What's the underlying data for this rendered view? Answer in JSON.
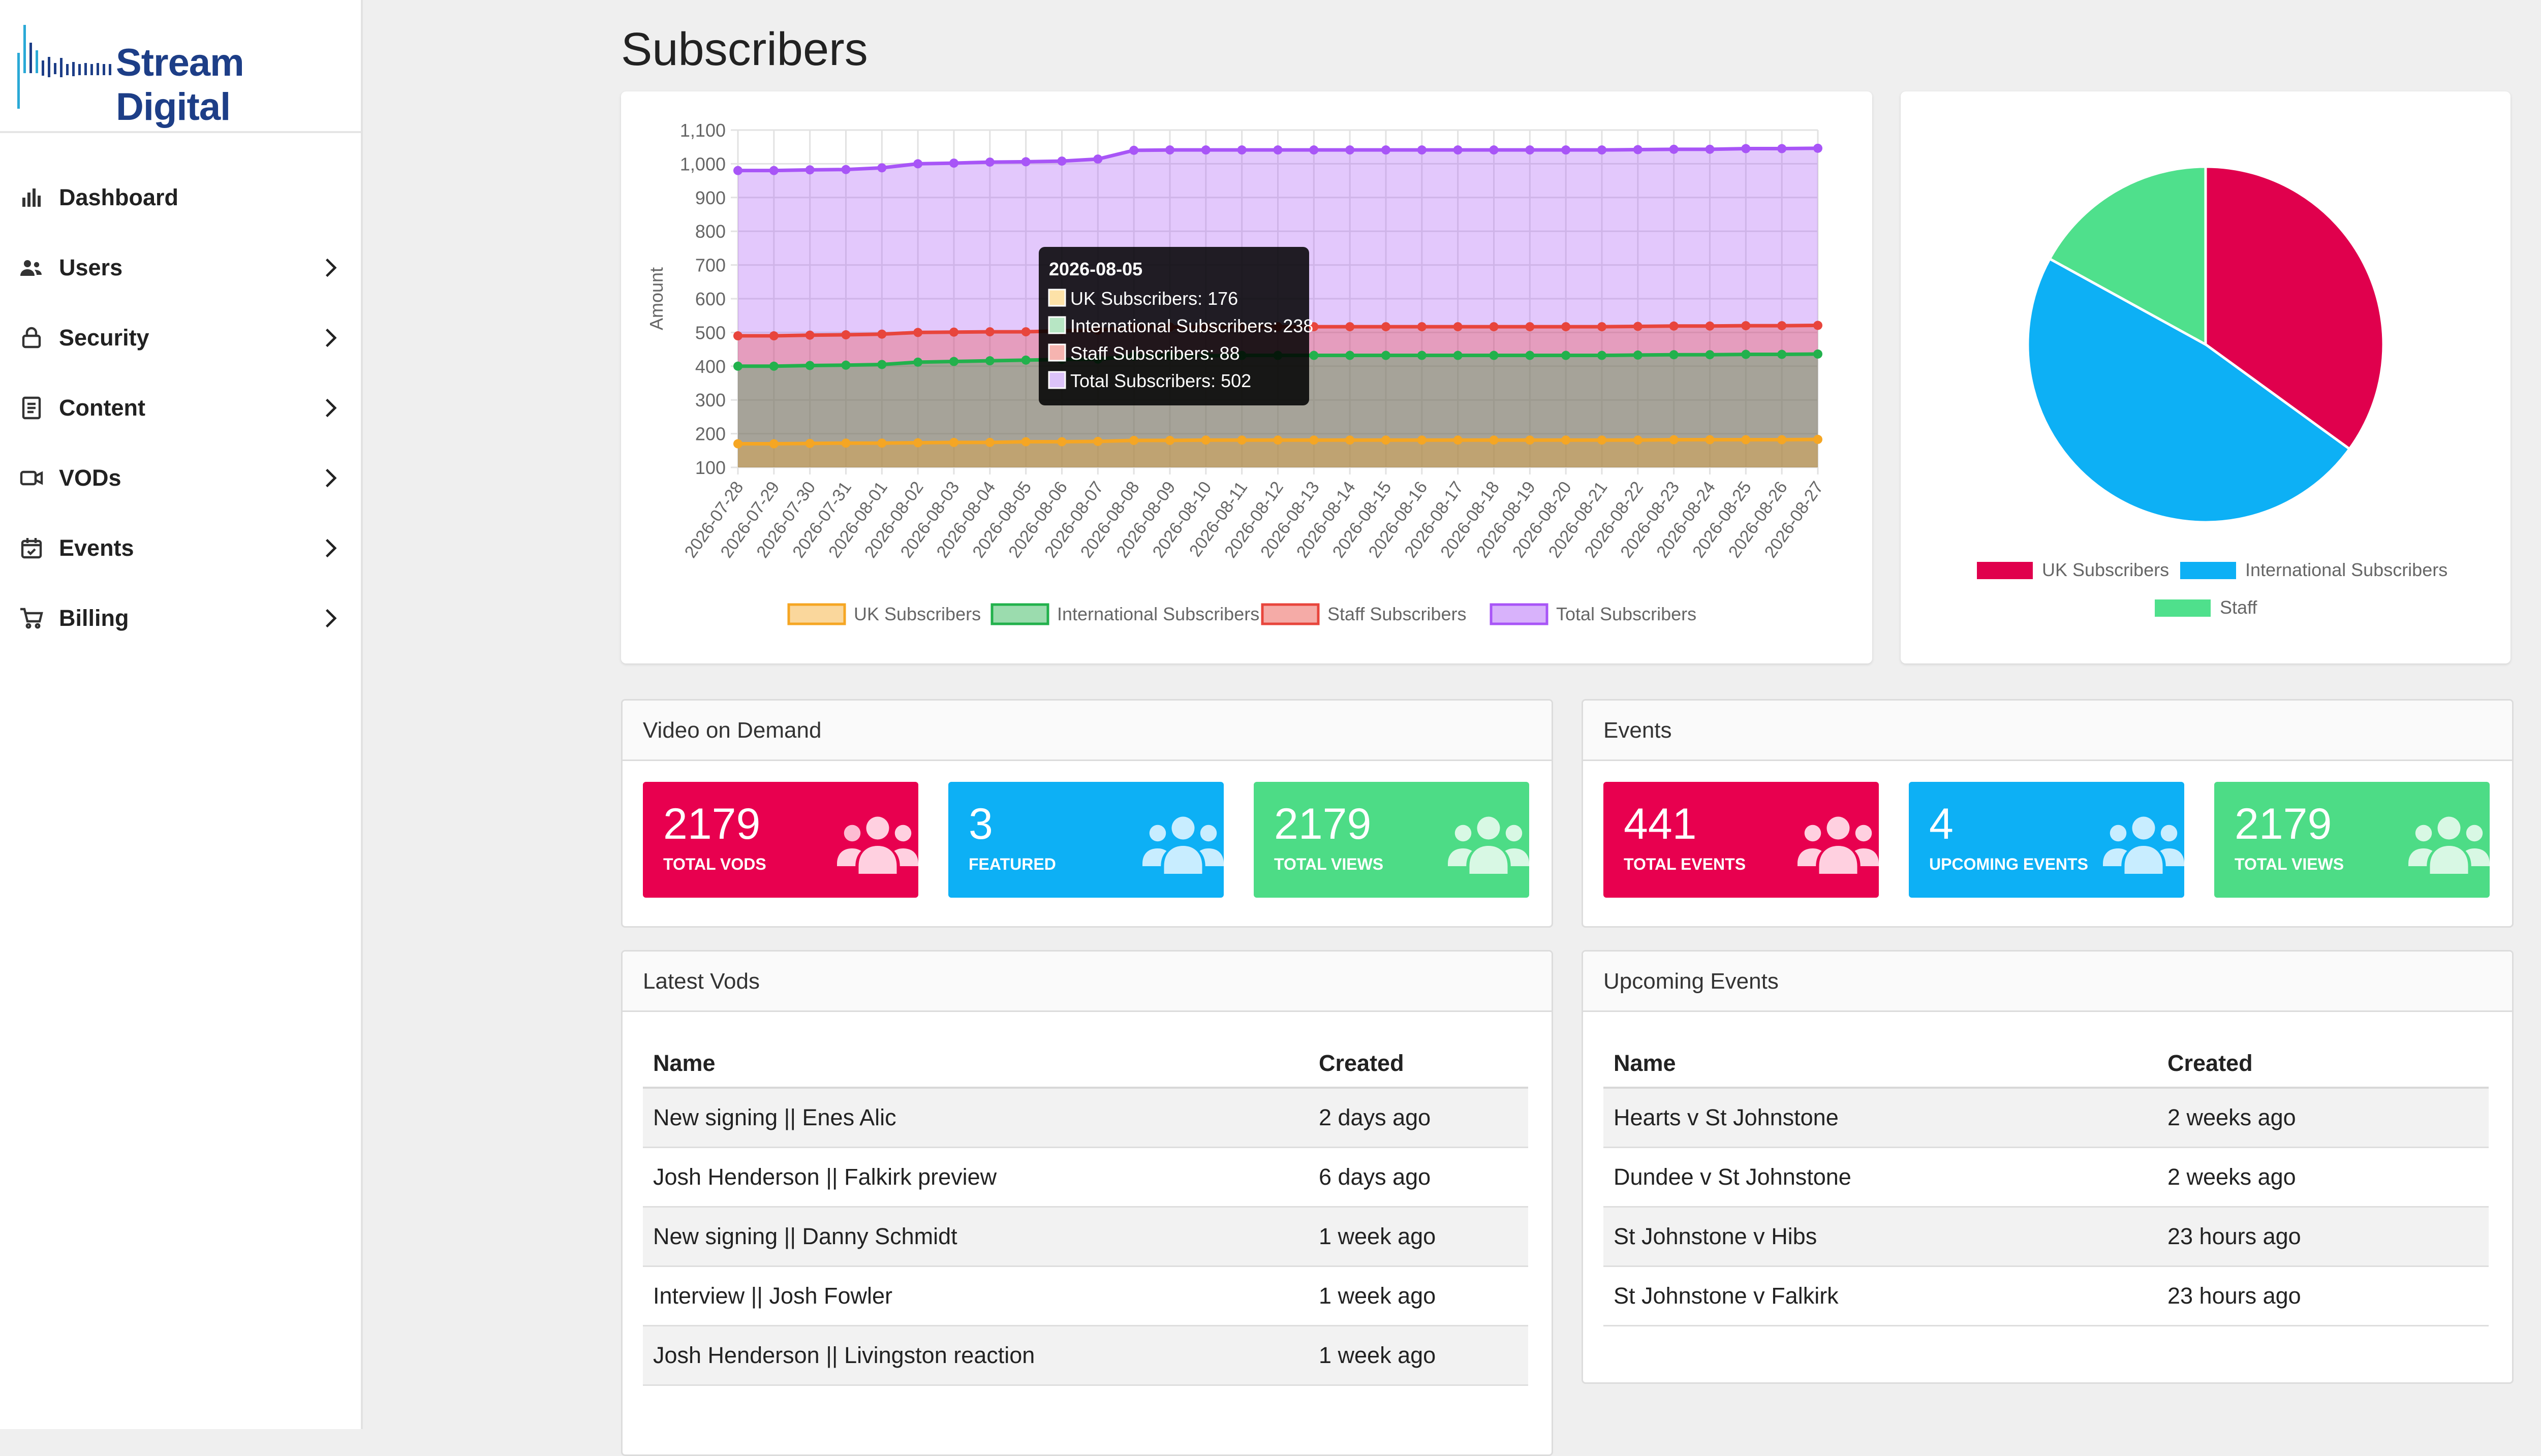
{
  "brand": {
    "name": "Stream Digital",
    "color": "#1d3e87"
  },
  "nav": [
    {
      "label": "Dashboard",
      "icon": "bar-chart-icon",
      "has_submenu": false
    },
    {
      "label": "Users",
      "icon": "users-icon",
      "has_submenu": true
    },
    {
      "label": "Security",
      "icon": "lock-icon",
      "has_submenu": true
    },
    {
      "label": "Content",
      "icon": "document-icon",
      "has_submenu": true
    },
    {
      "label": "VODs",
      "icon": "video-icon",
      "has_submenu": true
    },
    {
      "label": "Events",
      "icon": "calendar-check-icon",
      "has_submenu": true
    },
    {
      "label": "Billing",
      "icon": "cart-icon",
      "has_submenu": true
    }
  ],
  "page": {
    "title": "Subscribers"
  },
  "chart_data": [
    {
      "type": "area",
      "ylabel": "Amount",
      "xlabel": "",
      "ylim": [
        100,
        1100
      ],
      "yticks": [
        100,
        200,
        300,
        400,
        500,
        600,
        700,
        800,
        900,
        "1,000",
        "1,100"
      ],
      "grid": true,
      "legend": "bottom",
      "categories": [
        "2026-07-28",
        "2026-07-29",
        "2026-07-30",
        "2026-07-31",
        "2026-08-01",
        "2026-08-02",
        "2026-08-03",
        "2026-08-04",
        "2026-08-05",
        "2026-08-06",
        "2026-08-07",
        "2026-08-08",
        "2026-08-09",
        "2026-08-10",
        "2026-08-11",
        "2026-08-12",
        "2026-08-13",
        "2026-08-14",
        "2026-08-15",
        "2026-08-16",
        "2026-08-17",
        "2026-08-18",
        "2026-08-19",
        "2026-08-20",
        "2026-08-21",
        "2026-08-22",
        "2026-08-23",
        "2026-08-24",
        "2026-08-25",
        "2026-08-26",
        "2026-08-27"
      ],
      "series": [
        {
          "name": "UK Subscribers",
          "color": "#f5a623",
          "values": [
            170,
            170,
            171,
            172,
            172,
            173,
            174,
            174,
            176,
            176,
            177,
            180,
            180,
            181,
            181,
            181,
            181,
            181,
            181,
            181,
            181,
            181,
            181,
            181,
            181,
            181,
            182,
            182,
            182,
            182,
            183
          ]
        },
        {
          "name": "International Subscribers",
          "color": "#22b14c",
          "values": [
            400,
            400,
            402,
            403,
            405,
            412,
            414,
            416,
            418,
            420,
            421,
            430,
            431,
            431,
            432,
            432,
            432,
            432,
            432,
            432,
            432,
            432,
            432,
            432,
            432,
            433,
            434,
            434,
            435,
            435,
            436
          ]
        },
        {
          "name": "Staff Subscribers",
          "color": "#e8453c",
          "values": [
            490,
            490,
            492,
            493,
            495,
            500,
            501,
            502,
            502,
            505,
            507,
            515,
            516,
            516,
            517,
            517,
            517,
            517,
            517,
            517,
            517,
            517,
            517,
            517,
            517,
            518,
            519,
            519,
            520,
            520,
            521
          ]
        },
        {
          "name": "Total Subscribers",
          "color": "#a855f7",
          "values": [
            980,
            980,
            982,
            983,
            988,
            1000,
            1002,
            1005,
            1006,
            1008,
            1014,
            1040,
            1041,
            1041,
            1041,
            1041,
            1041,
            1041,
            1041,
            1041,
            1041,
            1041,
            1041,
            1041,
            1041,
            1042,
            1043,
            1043,
            1045,
            1045,
            1046
          ]
        }
      ],
      "tooltip": {
        "title": "2026-08-05",
        "lines": [
          {
            "text": "UK Subscribers: 176",
            "color": "#fde2a8"
          },
          {
            "text": "International Subscribers: 238",
            "color": "#b7e6c4"
          },
          {
            "text": "Staff Subscribers: 88",
            "color": "#f6b4b0"
          },
          {
            "text": "Total Subscribers: 502",
            "color": "#dcc3f9"
          }
        ]
      }
    },
    {
      "type": "pie",
      "legend": "bottom",
      "slices": [
        {
          "name": "UK Subscribers",
          "value": 35,
          "color": "#e0004d"
        },
        {
          "name": "International Subscribers",
          "value": 48,
          "color": "#0db0f5"
        },
        {
          "name": "Staff",
          "value": 17,
          "color": "#4fe08c"
        }
      ]
    }
  ],
  "vod": {
    "title": "Video on Demand",
    "tiles": [
      {
        "value": "2179",
        "label": "Total VODs",
        "color": "#e8004f"
      },
      {
        "value": "3",
        "label": "Featured",
        "color": "#0db0f5"
      },
      {
        "value": "2179",
        "label": "Total Views",
        "color": "#4ddc86"
      }
    ]
  },
  "events": {
    "title": "Events",
    "tiles": [
      {
        "value": "441",
        "label": "Total Events",
        "color": "#e8004f"
      },
      {
        "value": "4",
        "label": "Upcoming Events",
        "color": "#0db0f5"
      },
      {
        "value": "2179",
        "label": "Total Views",
        "color": "#4ddc86"
      }
    ]
  },
  "latest_vods": {
    "title": "Latest Vods",
    "columns": [
      "Name",
      "Created"
    ],
    "rows": [
      [
        "New signing || Enes Alic",
        "2 days ago"
      ],
      [
        "Josh Henderson || Falkirk preview",
        "6 days ago"
      ],
      [
        "New signing || Danny Schmidt",
        "1 week ago"
      ],
      [
        "Interview || Josh Fowler",
        "1 week ago"
      ],
      [
        "Josh Henderson || Livingston reaction",
        "1 week ago"
      ]
    ]
  },
  "upcoming_events": {
    "title": "Upcoming Events",
    "columns": [
      "Name",
      "Created"
    ],
    "rows": [
      [
        "Hearts v St Johnstone",
        "2 weeks ago"
      ],
      [
        "Dundee v St Johnstone",
        "2 weeks ago"
      ],
      [
        "St Johnstone v Hibs",
        "23 hours ago"
      ],
      [
        "St Johnstone v Falkirk",
        "23 hours ago"
      ]
    ]
  }
}
